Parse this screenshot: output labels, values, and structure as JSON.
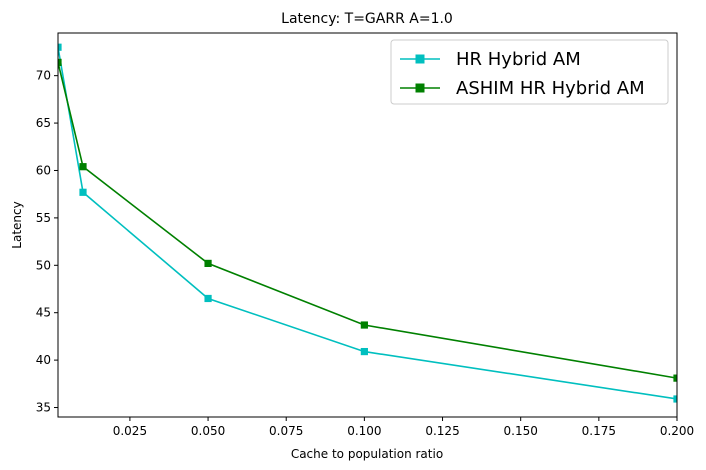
{
  "chart_data": {
    "type": "line",
    "title": "Latency: T=GARR A=1.0",
    "xlabel": "Cache to population ratio",
    "ylabel": "Latency",
    "xlim": [
      0.002,
      0.2
    ],
    "ylim": [
      34,
      74.5
    ],
    "xticks": [
      0.025,
      0.05,
      0.075,
      0.1,
      0.125,
      0.15,
      0.175,
      0.2
    ],
    "xtick_labels": [
      "0.025",
      "0.050",
      "0.075",
      "0.100",
      "0.125",
      "0.150",
      "0.175",
      "0.200"
    ],
    "yticks": [
      35,
      40,
      45,
      50,
      55,
      60,
      65,
      70
    ],
    "ytick_labels": [
      "35",
      "40",
      "45",
      "50",
      "55",
      "60",
      "65",
      "70"
    ],
    "grid": false,
    "legend_position": "top-right",
    "x": [
      0.002,
      0.01,
      0.05,
      0.1,
      0.2
    ],
    "series": [
      {
        "name": "HR Hybrid AM",
        "color": "#00bfbf",
        "marker": "square",
        "values": [
          73.0,
          57.7,
          46.5,
          40.9,
          35.9
        ]
      },
      {
        "name": "ASHIM HR Hybrid AM",
        "color": "#008000",
        "marker": "square",
        "values": [
          71.4,
          60.4,
          50.2,
          43.7,
          38.1
        ]
      }
    ]
  }
}
